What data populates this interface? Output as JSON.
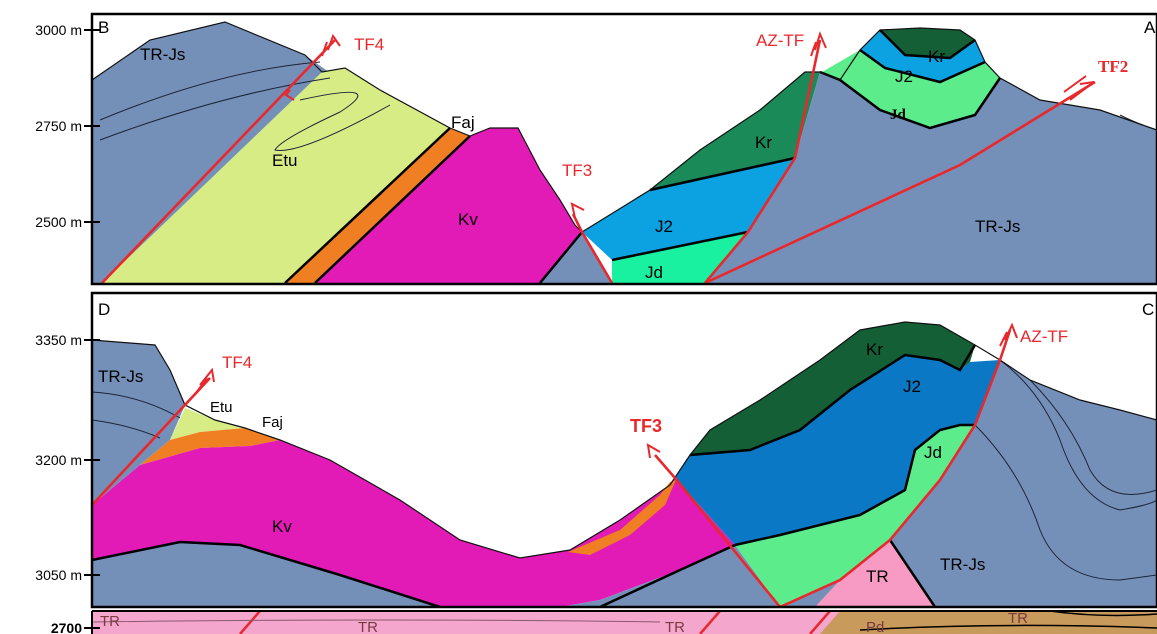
{
  "colors": {
    "tr_js": "#7590b8",
    "etu": "#d7ec84",
    "faj": "#ef7f22",
    "kv": "#e21ab6",
    "kr": "#1a8a58",
    "kr_dark": "#145f36",
    "j2": "#0ca2e2",
    "j2_dark": "#0a78c4",
    "jd": "#19f0a0",
    "jd_light": "#5cec8c",
    "tr_pink": "#f79bc4",
    "pd_tan": "#b2844a",
    "fault": "#e8282c"
  },
  "panel_top": {
    "corner_left": "B",
    "corner_right": "A",
    "axis_ticks": [
      "3000 m",
      "2750 m",
      "2500 m"
    ],
    "units": {
      "tr_js_left": "TR-Js",
      "etu": "Etu",
      "faj": "Faj",
      "kv": "Kv",
      "j2_low": "J2",
      "jd_low": "Jd",
      "kr_mid": "Kr",
      "kr_top": "Kr",
      "j2_top": "J2",
      "jd_top": "Jd",
      "tr_js_right": "TR-Js"
    },
    "faults": {
      "tf4": "TF4",
      "tf3": "TF3",
      "az_tf": "AZ-TF",
      "tf2": "TF2"
    }
  },
  "panel_bottom": {
    "corner_left": "D",
    "corner_right": "C",
    "axis_ticks": [
      "3350 m",
      "3200 m",
      "3050 m"
    ],
    "units": {
      "tr_js_left": "TR-Js",
      "etu": "Etu",
      "faj": "Faj",
      "kv": "Kv",
      "kr": "Kr",
      "j2": "J2",
      "jd": "Jd",
      "tr_js_right": "TR-Js",
      "tr": "TR"
    },
    "faults": {
      "tf4": "TF4",
      "tf3": "TF3",
      "az_tf": "AZ-TF"
    }
  },
  "strip": {
    "axis_tick": "2700",
    "labels": [
      "TR",
      "TR",
      "TR",
      "Pd",
      "TR"
    ]
  }
}
